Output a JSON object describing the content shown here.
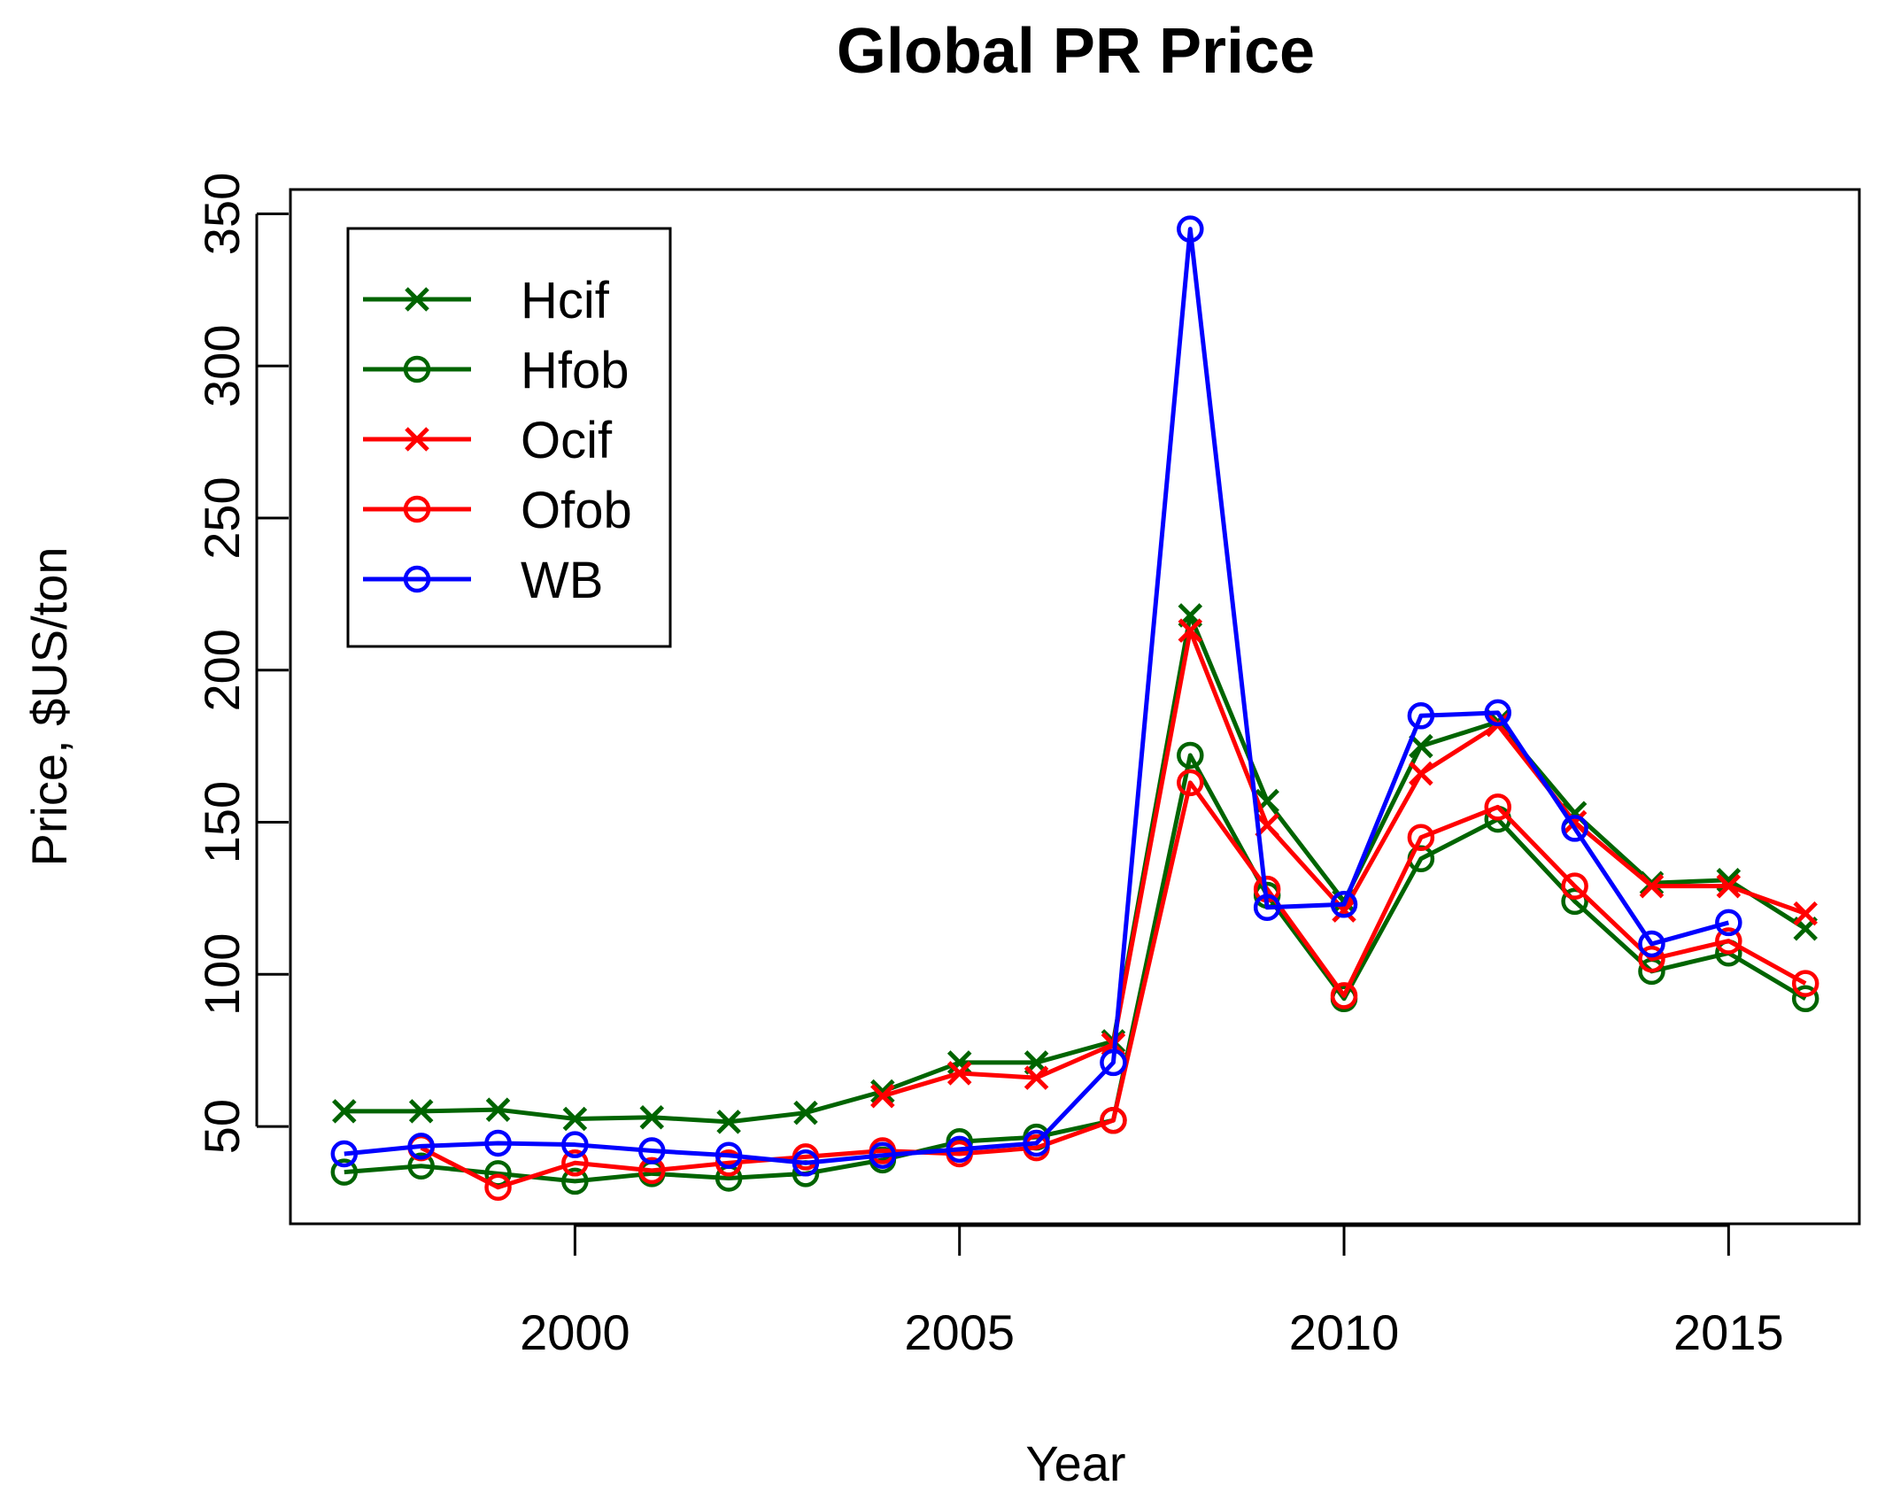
{
  "chart_data": {
    "type": "line",
    "title": "Global PR Price",
    "xlabel": "Year",
    "ylabel": "Price, $US/ton",
    "xlim": [
      1996.3,
      2016.7
    ],
    "ylim": [
      18,
      358
    ],
    "xticks": [
      2000,
      2005,
      2010,
      2015
    ],
    "yticks": [
      50,
      100,
      150,
      200,
      250,
      300,
      350
    ],
    "legend_position": "top-left",
    "x": [
      1997,
      1998,
      1999,
      2000,
      2001,
      2002,
      2003,
      2004,
      2005,
      2006,
      2007,
      2008,
      2009,
      2010,
      2011,
      2012,
      2013,
      2014,
      2015,
      2016
    ],
    "series": [
      {
        "name": "Hcif",
        "color": "#006400",
        "marker": "x",
        "values": [
          55,
          55,
          55.5,
          52.5,
          53,
          51.5,
          54.5,
          61.5,
          71,
          71,
          78,
          218,
          157,
          124,
          175,
          183,
          153,
          130,
          131,
          115
        ]
      },
      {
        "name": "Hfob",
        "color": "#006400",
        "marker": "o",
        "values": [
          35,
          37,
          34.5,
          32,
          34.5,
          33,
          34.5,
          39,
          45,
          46.5,
          52,
          172,
          126,
          92,
          138,
          151,
          124,
          101,
          107,
          92
        ]
      },
      {
        "name": "Ocif",
        "color": "#ff0000",
        "marker": "x",
        "values": [
          null,
          null,
          null,
          null,
          null,
          null,
          null,
          60,
          67.5,
          66,
          77,
          213,
          149,
          121,
          166,
          182,
          150,
          129,
          129,
          120
        ]
      },
      {
        "name": "Ofob",
        "color": "#ff0000",
        "marker": "o",
        "values": [
          null,
          43,
          30,
          38,
          35.5,
          38,
          40,
          42,
          41,
          43,
          52,
          163,
          128,
          93,
          145,
          155,
          129,
          105,
          111,
          97
        ]
      },
      {
        "name": "WB",
        "color": "#0000ff",
        "marker": "o",
        "values": [
          41,
          43.5,
          44.5,
          44,
          42,
          40.5,
          38,
          40.5,
          42.5,
          44.5,
          71,
          345,
          122,
          123,
          185,
          186,
          148,
          110,
          117,
          null
        ]
      }
    ]
  }
}
